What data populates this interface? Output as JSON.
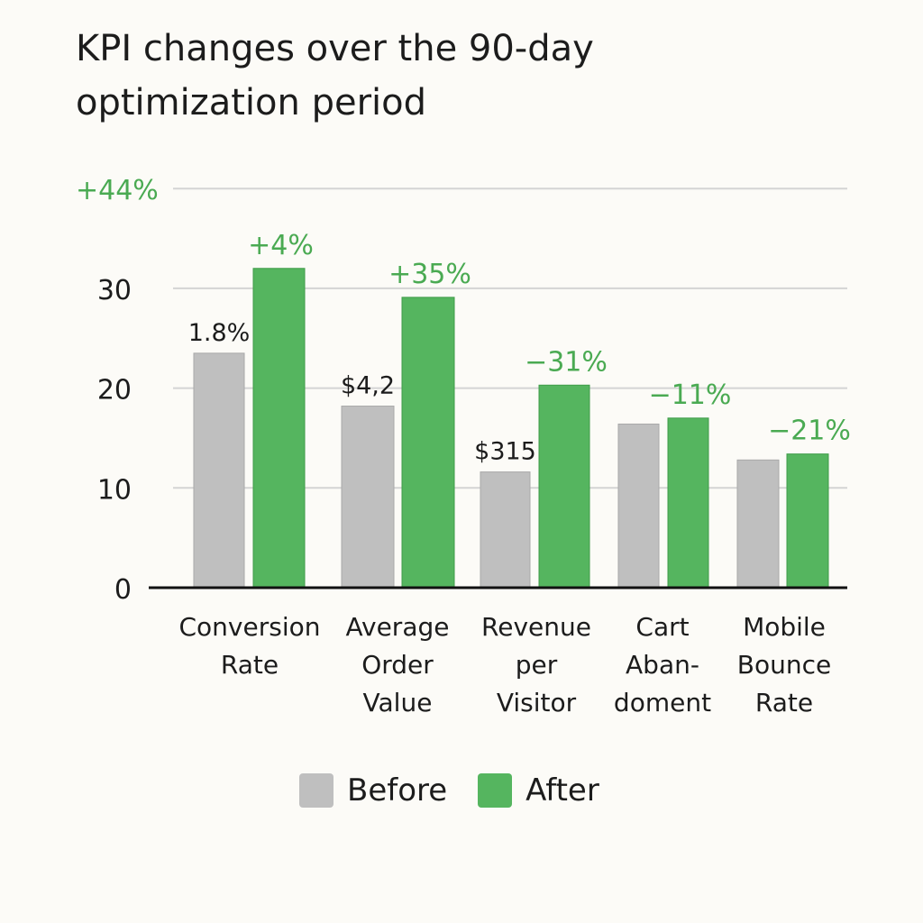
{
  "chart_data": {
    "type": "bar",
    "title_lines": [
      "KPI changes over the 90-day",
      "optimization period"
    ],
    "categories": [
      [
        "Conversion",
        "Rate"
      ],
      [
        "Average",
        "Order",
        "Value"
      ],
      [
        "Revenue",
        "per",
        "Visitor"
      ],
      [
        "Cart",
        "Aban-",
        "doment"
      ],
      [
        "Mobile",
        "Bounce",
        "Rate"
      ]
    ],
    "series": [
      {
        "name": "Before",
        "color": "#bfbfbf",
        "values": [
          23.5,
          18.2,
          11.6,
          16.4,
          12.8
        ]
      },
      {
        "name": "After",
        "color": "#55b55f",
        "values": [
          32.0,
          29.1,
          20.3,
          17.0,
          13.4
        ]
      }
    ],
    "before_labels": [
      "1.8%",
      "$4,2",
      "$315",
      "",
      ""
    ],
    "after_labels": [
      "+4%",
      "+35%",
      "−31%",
      "−11%",
      "−21%"
    ],
    "top_label": "+44%",
    "yticks": [
      0,
      10,
      20,
      30
    ],
    "top_gridline": 40,
    "ylim": [
      0,
      40
    ],
    "legend": [
      "Before",
      "After"
    ],
    "colors": {
      "before": "#bfbfbf",
      "after": "#55b55f",
      "accent_text": "#4aaa52",
      "text": "#1c1c1c",
      "grid": "#d4d4d4",
      "axis": "#111111"
    }
  }
}
